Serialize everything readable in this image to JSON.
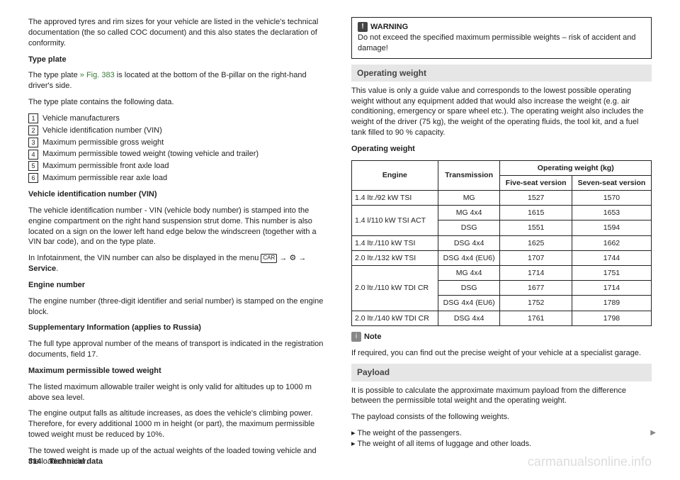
{
  "left": {
    "intro": "The approved tyres and rim sizes for your vehicle are listed in the vehicle's technical documentation (the so called COC document) and this also states the declaration of conformity.",
    "type_plate_head": "Type plate",
    "type_plate_1a": "The type plate ",
    "type_plate_link": "» Fig. 383",
    "type_plate_1b": " is located at the bottom of the B-pillar on the right-hand driver's side.",
    "type_plate_2": "The type plate contains the following data.",
    "list": {
      "1": "Vehicle manufacturers",
      "2": "Vehicle identification number (VIN)",
      "3": "Maximum permissible gross weight",
      "4": "Maximum permissible towed weight (towing vehicle and trailer)",
      "5": "Maximum permissible front axle load",
      "6": "Maximum permissible rear axle load"
    },
    "vin_head": "Vehicle identification number (VIN)",
    "vin_body": "The vehicle identification number - VIN (vehicle body number) is stamped into the engine compartment on the right hand suspension strut dome. This number is also located on a sign on the lower left hand edge below the windscreen (together with a VIN bar code), and on the type plate.",
    "info_1": "In Infotainment, the VIN number can also be displayed in the menu ",
    "info_car": "CAR",
    "info_arrow": " → ",
    "info_gear": "⚙",
    "info_arrow2": " → ",
    "info_service": "Service",
    "info_dot": ".",
    "engine_head": "Engine number",
    "engine_body": "The engine number (three-digit identifier and serial number) is stamped on the engine block.",
    "supp_head": "Supplementary Information (applies to Russia)",
    "supp_body": "The full type approval number of the means of transport is indicated in the registration documents, field 17.",
    "max_head": "Maximum permissible towed weight",
    "max_1": "The listed maximum allowable trailer weight is only valid for altitudes up to 1000 m above sea level.",
    "max_2": "The engine output falls as altitude increases, as does the vehicle's climbing power. Therefore, for every additional 1000 m in height (or part), the maximum permissible towed weight must be reduced by 10%.",
    "max_3": "The towed weight is made up of the actual weights of the loaded towing vehicle and the loaded trailer."
  },
  "right": {
    "warn_icon": "!",
    "warn_head": "WARNING",
    "warn_body": "Do not exceed the specified maximum permissible weights – risk of accident and damage!",
    "opw_head": "Operating weight",
    "opw_body": "This value is only a guide value and corresponds to the lowest possible operating weight without any equipment added that would also increase the weight (e.g. air conditioning, emergency or spare wheel etc.). The operating weight also includes the weight of the driver (75 kg), the weight of the operating fluids, the tool kit, and a fuel tank filled to 90 % capacity.",
    "table_title": "Operating weight",
    "th": {
      "engine": "Engine",
      "trans": "Transmission",
      "opw": "Operating weight (kg)",
      "five": "Five-seat version",
      "seven": "Seven-seat version"
    },
    "rows": [
      {
        "engine": "1.4 ltr./92 kW TSI",
        "trans": "MG",
        "five": "1527",
        "seven": "1570"
      },
      {
        "engine": "1.4 l/110 kW TSI ACT",
        "trans": "MG 4x4",
        "five": "1615",
        "seven": "1653"
      },
      {
        "engine": "",
        "trans": "DSG",
        "five": "1551",
        "seven": "1594"
      },
      {
        "engine": "1.4 ltr./110 kW TSI",
        "trans": "DSG 4x4",
        "five": "1625",
        "seven": "1662"
      },
      {
        "engine": "2.0 ltr./132 kW TSI",
        "trans": "DSG 4x4 (EU6)",
        "five": "1707",
        "seven": "1744"
      },
      {
        "engine": "2.0 ltr./110 kW TDI CR",
        "trans": "MG 4x4",
        "five": "1714",
        "seven": "1751"
      },
      {
        "engine": "",
        "trans": "DSG",
        "five": "1677",
        "seven": "1714"
      },
      {
        "engine": "",
        "trans": "DSG 4x4 (EU6)",
        "five": "1752",
        "seven": "1789"
      },
      {
        "engine": "2.0 ltr./140 kW TDI CR",
        "trans": "DSG 4x4",
        "five": "1761",
        "seven": "1798"
      }
    ],
    "note_icon": "i",
    "note_head": "Note",
    "note_body": "If required, you can find out the precise weight of your vehicle at a specialist garage.",
    "payload_head": "Payload",
    "payload_body": "It is possible to calculate the approximate maximum payload from the difference between the permissible total weight and the operating weight.",
    "payload_list_intro": "The payload consists of the following weights.",
    "payload_b1": "The weight of the passengers.",
    "payload_b2": "The weight of all items of luggage and other loads."
  },
  "footer": {
    "page": "314",
    "section": "Technical data",
    "watermark": "carmanualsonline.info"
  }
}
